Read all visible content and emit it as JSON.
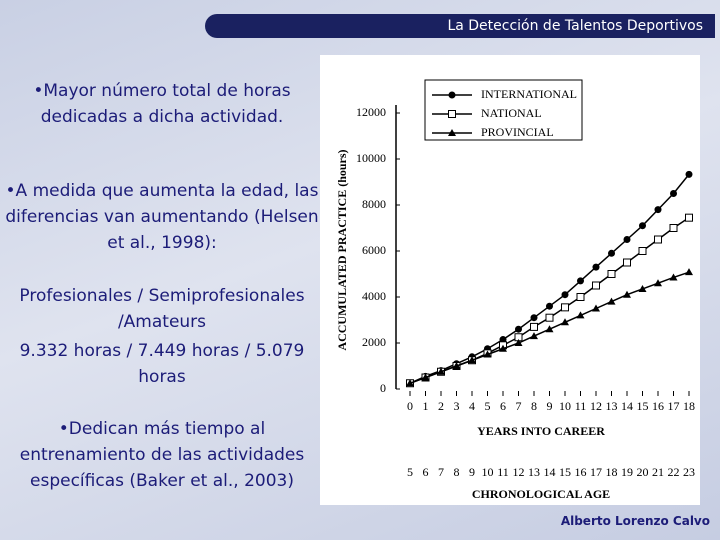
{
  "header": {
    "title": "La Detección de Talentos Deportivos"
  },
  "bullets": [
    "•Mayor número total de horas dedicadas a dicha actividad.",
    "•A medida que aumenta la edad, las diferencias van aumentando (Helsen et al., 1998):",
    "Profesionales / Semiprofesionales /Amateurs",
    "9.332 horas / 7.449 horas / 5.079 horas",
    "•Dedican más tiempo al entrenamiento de las actividades específicas (Baker et al., 2003)"
  ],
  "footer": {
    "author": "Alberto Lorenzo Calvo"
  },
  "chart_data": {
    "type": "line",
    "ylabel": "ACCUMULATED PRACTICE (hours)",
    "xlabel": "YEARS INTO CAREER",
    "x2label": "CHRONOLOGICAL AGE",
    "x": [
      0,
      1,
      2,
      3,
      4,
      5,
      6,
      7,
      8,
      9,
      10,
      11,
      12,
      13,
      14,
      15,
      16,
      17,
      18
    ],
    "xlim": [
      0,
      18
    ],
    "xticks": [
      0,
      1,
      2,
      3,
      4,
      5,
      6,
      7,
      8,
      9,
      10,
      11,
      12,
      13,
      14,
      15,
      16,
      17,
      18
    ],
    "x2ticks": [
      5,
      6,
      7,
      8,
      9,
      10,
      11,
      12,
      13,
      14,
      15,
      16,
      17,
      18,
      19,
      20,
      21,
      22,
      23
    ],
    "ylim": [
      0,
      12000
    ],
    "yticks": [
      0,
      2000,
      4000,
      6000,
      8000,
      10000,
      12000
    ],
    "series": [
      {
        "name": "INTERNATIONAL",
        "marker": "circle",
        "color": "#000000",
        "values": [
          250,
          550,
          800,
          1100,
          1400,
          1750,
          2150,
          2600,
          3100,
          3600,
          4100,
          4700,
          5300,
          5900,
          6500,
          7100,
          7800,
          8500,
          9332
        ]
      },
      {
        "name": "NATIONAL",
        "marker": "square",
        "color": "#000000",
        "values": [
          250,
          500,
          750,
          1000,
          1250,
          1550,
          1900,
          2250,
          2700,
          3100,
          3550,
          4000,
          4500,
          5000,
          5500,
          6000,
          6500,
          7000,
          7449
        ]
      },
      {
        "name": "PROVINCIAL",
        "marker": "triangle",
        "color": "#000000",
        "values": [
          250,
          500,
          750,
          1000,
          1250,
          1500,
          1750,
          2000,
          2300,
          2600,
          2900,
          3200,
          3500,
          3800,
          4100,
          4350,
          4600,
          4850,
          5079
        ]
      }
    ]
  }
}
